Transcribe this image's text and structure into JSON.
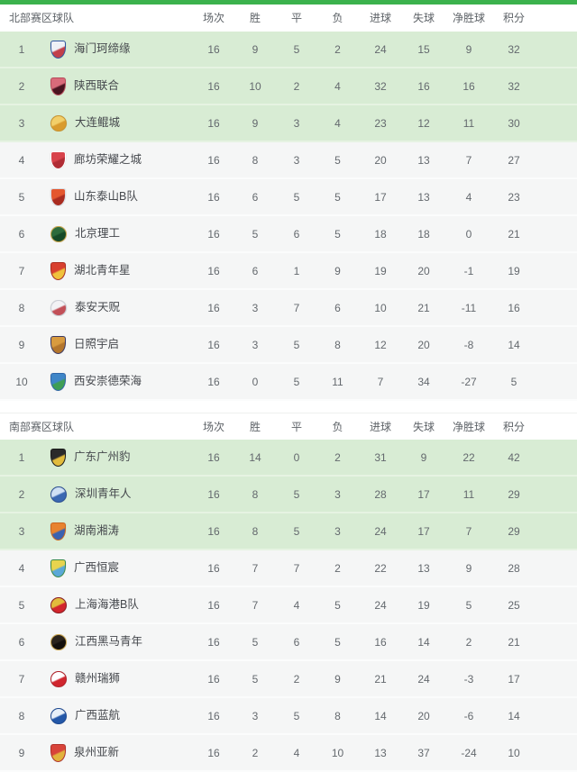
{
  "page": {
    "accent_color": "#3bb24d",
    "highlight_row_color": "#d8ecd4",
    "row_color": "#f5f6f6"
  },
  "columns": [
    "球队",
    "场次",
    "胜",
    "平",
    "负",
    "进球",
    "失球",
    "净胜球",
    "积分"
  ],
  "tables": [
    {
      "region": "北部赛区",
      "rows": [
        {
          "rank": "1",
          "team": "海门珂缔缘",
          "stats": [
            16,
            9,
            5,
            2,
            24,
            15,
            9,
            32
          ],
          "highlight": true,
          "logo": {
            "shape": "shield",
            "colors": [
              "#eef1f6",
              "#c23f49",
              "#2f55a0"
            ]
          }
        },
        {
          "rank": "2",
          "team": "陕西联合",
          "stats": [
            16,
            10,
            2,
            4,
            32,
            16,
            16,
            32
          ],
          "highlight": true,
          "logo": {
            "shape": "shield",
            "colors": [
              "#d96b7a",
              "#4a1420",
              "#b84a5a"
            ]
          }
        },
        {
          "rank": "3",
          "team": "大连鲲城",
          "stats": [
            16,
            9,
            3,
            4,
            23,
            12,
            11,
            30
          ],
          "highlight": true,
          "logo": {
            "shape": "circle",
            "colors": [
              "#f2cf6a",
              "#d99b2e",
              "#c8922e"
            ]
          }
        },
        {
          "rank": "4",
          "team": "廊坊荣耀之城",
          "stats": [
            16,
            8,
            3,
            5,
            20,
            13,
            7,
            27
          ],
          "highlight": false,
          "logo": {
            "shape": "shield",
            "colors": [
              "#d8434b",
              "#b02c34",
              "#ffffff"
            ]
          }
        },
        {
          "rank": "5",
          "team": "山东泰山B队",
          "stats": [
            16,
            6,
            5,
            5,
            17,
            13,
            4,
            23
          ],
          "highlight": false,
          "logo": {
            "shape": "shield",
            "colors": [
              "#e4572e",
              "#a92c20",
              "#d8dde4"
            ]
          }
        },
        {
          "rank": "6",
          "team": "北京理工",
          "stats": [
            16,
            5,
            6,
            5,
            18,
            18,
            0,
            21
          ],
          "highlight": false,
          "logo": {
            "shape": "circle",
            "colors": [
              "#2e6b3c",
              "#174a28",
              "#c9a54a"
            ]
          }
        },
        {
          "rank": "7",
          "team": "湖北青年星",
          "stats": [
            16,
            6,
            1,
            9,
            19,
            20,
            -1,
            19
          ],
          "highlight": false,
          "logo": {
            "shape": "shield",
            "colors": [
              "#d8402f",
              "#f0c23c",
              "#a92c20"
            ]
          }
        },
        {
          "rank": "8",
          "team": "泰安天贶",
          "stats": [
            16,
            3,
            7,
            6,
            10,
            21,
            -11,
            16
          ],
          "highlight": false,
          "logo": {
            "shape": "circle",
            "colors": [
              "#f2f2f5",
              "#c25058",
              "#c9ccd4"
            ]
          }
        },
        {
          "rank": "9",
          "team": "日照宇启",
          "stats": [
            16,
            3,
            5,
            8,
            12,
            20,
            -8,
            14
          ],
          "highlight": false,
          "logo": {
            "shape": "shield",
            "colors": [
              "#d89b3f",
              "#b4762c",
              "#3c3a62"
            ]
          }
        },
        {
          "rank": "10",
          "team": "西安崇德荣海",
          "stats": [
            16,
            0,
            5,
            11,
            7,
            34,
            -27,
            5
          ],
          "highlight": false,
          "logo": {
            "shape": "shield",
            "colors": [
              "#3f86c8",
              "#3f9e55",
              "#2f66a8"
            ]
          }
        }
      ]
    },
    {
      "region": "南部赛区",
      "rows": [
        {
          "rank": "1",
          "team": "广东广州豹",
          "stats": [
            16,
            14,
            0,
            2,
            31,
            9,
            22,
            42
          ],
          "highlight": true,
          "logo": {
            "shape": "shield",
            "colors": [
              "#2a2a2a",
              "#e2bb3c",
              "#1a1a1a"
            ]
          }
        },
        {
          "rank": "2",
          "team": "深圳青年人",
          "stats": [
            16,
            8,
            5,
            3,
            28,
            17,
            11,
            29
          ],
          "highlight": true,
          "logo": {
            "shape": "circle",
            "colors": [
              "#cfe0f4",
              "#3a68b2",
              "#2c4f92"
            ]
          }
        },
        {
          "rank": "3",
          "team": "湖南湘涛",
          "stats": [
            16,
            8,
            5,
            3,
            24,
            17,
            7,
            29
          ],
          "highlight": true,
          "logo": {
            "shape": "shield",
            "colors": [
              "#e8832f",
              "#3a62b0",
              "#c8641f"
            ]
          }
        },
        {
          "rank": "4",
          "team": "广西恒宸",
          "stats": [
            16,
            7,
            7,
            2,
            22,
            13,
            9,
            28
          ],
          "highlight": false,
          "logo": {
            "shape": "shield",
            "colors": [
              "#e8d44e",
              "#5aa8d8",
              "#3a8a48"
            ]
          }
        },
        {
          "rank": "5",
          "team": "上海海港B队",
          "stats": [
            16,
            7,
            4,
            5,
            24,
            19,
            5,
            25
          ],
          "highlight": false,
          "logo": {
            "shape": "circle",
            "colors": [
              "#e2bb3c",
              "#d2252d",
              "#8c1a20"
            ]
          }
        },
        {
          "rank": "6",
          "team": "江西黑马青年",
          "stats": [
            16,
            5,
            6,
            5,
            16,
            14,
            2,
            21
          ],
          "highlight": false,
          "logo": {
            "shape": "circle",
            "colors": [
              "#2b241c",
              "#14100c",
              "#caa54e"
            ]
          }
        },
        {
          "rank": "7",
          "team": "赣州瑞狮",
          "stats": [
            16,
            5,
            2,
            9,
            21,
            24,
            -3,
            17
          ],
          "highlight": false,
          "logo": {
            "shape": "circle",
            "colors": [
              "#ffffff",
              "#d0262e",
              "#b01e26"
            ]
          }
        },
        {
          "rank": "8",
          "team": "广西蓝航",
          "stats": [
            16,
            3,
            5,
            8,
            14,
            20,
            -6,
            14
          ],
          "highlight": false,
          "logo": {
            "shape": "circle",
            "colors": [
              "#e8f0f8",
              "#2458a8",
              "#1c4890"
            ]
          }
        },
        {
          "rank": "9",
          "team": "泉州亚新",
          "stats": [
            16,
            2,
            4,
            10,
            13,
            37,
            -24,
            10
          ],
          "highlight": false,
          "logo": {
            "shape": "shield",
            "colors": [
              "#d8443a",
              "#e2b33c",
              "#b03028"
            ]
          }
        }
      ]
    }
  ]
}
